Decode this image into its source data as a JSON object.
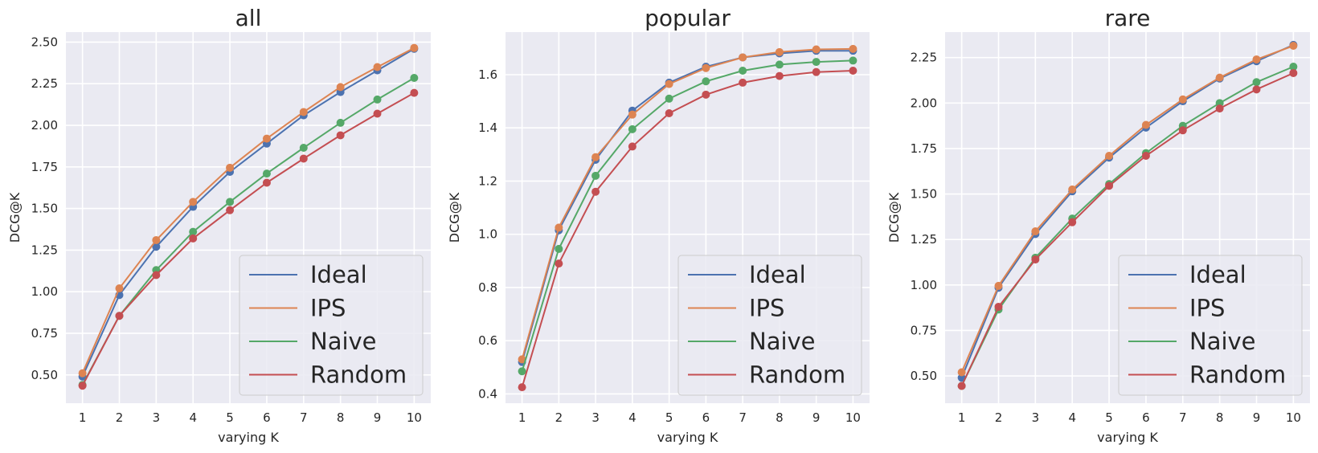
{
  "chart_data": [
    {
      "type": "line",
      "title": "all",
      "xlabel": "varying K",
      "ylabel": "DCG@K",
      "x": [
        1,
        2,
        3,
        4,
        5,
        6,
        7,
        8,
        9,
        10
      ],
      "xlim": [
        0.55,
        10.45
      ],
      "ylim": [
        0.33,
        2.56
      ],
      "yticks": [
        0.5,
        0.75,
        1.0,
        1.25,
        1.5,
        1.75,
        2.0,
        2.25,
        2.5
      ],
      "ytick_labels": [
        "0.50",
        "0.75",
        "1.00",
        "1.25",
        "1.50",
        "1.75",
        "2.00",
        "2.25",
        "2.50"
      ],
      "grid": true,
      "legend_position": "lower-right",
      "series": [
        {
          "name": "Ideal",
          "color": "#4c72b0",
          "values": [
            0.49,
            0.98,
            1.27,
            1.51,
            1.72,
            1.89,
            2.06,
            2.2,
            2.33,
            2.46
          ]
        },
        {
          "name": "IPS",
          "color": "#dd8452",
          "values": [
            0.51,
            1.02,
            1.31,
            1.54,
            1.745,
            1.92,
            2.08,
            2.23,
            2.35,
            2.465
          ]
        },
        {
          "name": "Naive",
          "color": "#55a868",
          "values": [
            0.44,
            0.855,
            1.13,
            1.36,
            1.54,
            1.71,
            1.865,
            2.015,
            2.155,
            2.285
          ]
        },
        {
          "name": "Random",
          "color": "#c44e52",
          "values": [
            0.435,
            0.855,
            1.1,
            1.32,
            1.49,
            1.655,
            1.8,
            1.94,
            2.07,
            2.195
          ]
        }
      ]
    },
    {
      "type": "line",
      "title": "popular",
      "xlabel": "varying K",
      "ylabel": "DCG@K",
      "x": [
        1,
        2,
        3,
        4,
        5,
        6,
        7,
        8,
        9,
        10
      ],
      "xlim": [
        0.55,
        10.45
      ],
      "ylim": [
        0.365,
        1.76
      ],
      "yticks": [
        0.4,
        0.6,
        0.8,
        1.0,
        1.2,
        1.4,
        1.6
      ],
      "ytick_labels": [
        "0.4",
        "0.6",
        "0.8",
        "1.0",
        "1.2",
        "1.4",
        "1.6"
      ],
      "grid": true,
      "legend_position": "lower-right",
      "series": [
        {
          "name": "Ideal",
          "color": "#4c72b0",
          "values": [
            0.52,
            1.015,
            1.28,
            1.465,
            1.57,
            1.63,
            1.665,
            1.68,
            1.69,
            1.69
          ]
        },
        {
          "name": "IPS",
          "color": "#dd8452",
          "values": [
            0.53,
            1.025,
            1.29,
            1.45,
            1.565,
            1.625,
            1.665,
            1.685,
            1.695,
            1.697
          ]
        },
        {
          "name": "Naive",
          "color": "#55a868",
          "values": [
            0.485,
            0.945,
            1.22,
            1.395,
            1.51,
            1.575,
            1.615,
            1.638,
            1.648,
            1.653
          ]
        },
        {
          "name": "Random",
          "color": "#c44e52",
          "values": [
            0.425,
            0.89,
            1.16,
            1.33,
            1.455,
            1.525,
            1.57,
            1.595,
            1.61,
            1.615
          ]
        }
      ]
    },
    {
      "type": "line",
      "title": "rare",
      "xlabel": "varying K",
      "ylabel": "DCG@K",
      "x": [
        1,
        2,
        3,
        4,
        5,
        6,
        7,
        8,
        9,
        10
      ],
      "xlim": [
        0.55,
        10.45
      ],
      "ylim": [
        0.35,
        2.39
      ],
      "yticks": [
        0.5,
        0.75,
        1.0,
        1.25,
        1.5,
        1.75,
        2.0,
        2.25
      ],
      "ytick_labels": [
        "0.50",
        "0.75",
        "1.00",
        "1.25",
        "1.50",
        "1.75",
        "2.00",
        "2.25"
      ],
      "grid": true,
      "legend_position": "lower-right",
      "series": [
        {
          "name": "Ideal",
          "color": "#4c72b0",
          "values": [
            0.49,
            0.985,
            1.28,
            1.515,
            1.7,
            1.865,
            2.01,
            2.135,
            2.23,
            2.32
          ]
        },
        {
          "name": "IPS",
          "color": "#dd8452",
          "values": [
            0.52,
            0.995,
            1.295,
            1.525,
            1.71,
            1.88,
            2.02,
            2.14,
            2.24,
            2.315
          ]
        },
        {
          "name": "Naive",
          "color": "#55a868",
          "values": [
            0.445,
            0.865,
            1.15,
            1.365,
            1.555,
            1.725,
            1.875,
            2.0,
            2.115,
            2.2
          ]
        },
        {
          "name": "Random",
          "color": "#c44e52",
          "values": [
            0.445,
            0.88,
            1.14,
            1.345,
            1.545,
            1.71,
            1.85,
            1.97,
            2.075,
            2.165
          ]
        }
      ]
    }
  ]
}
